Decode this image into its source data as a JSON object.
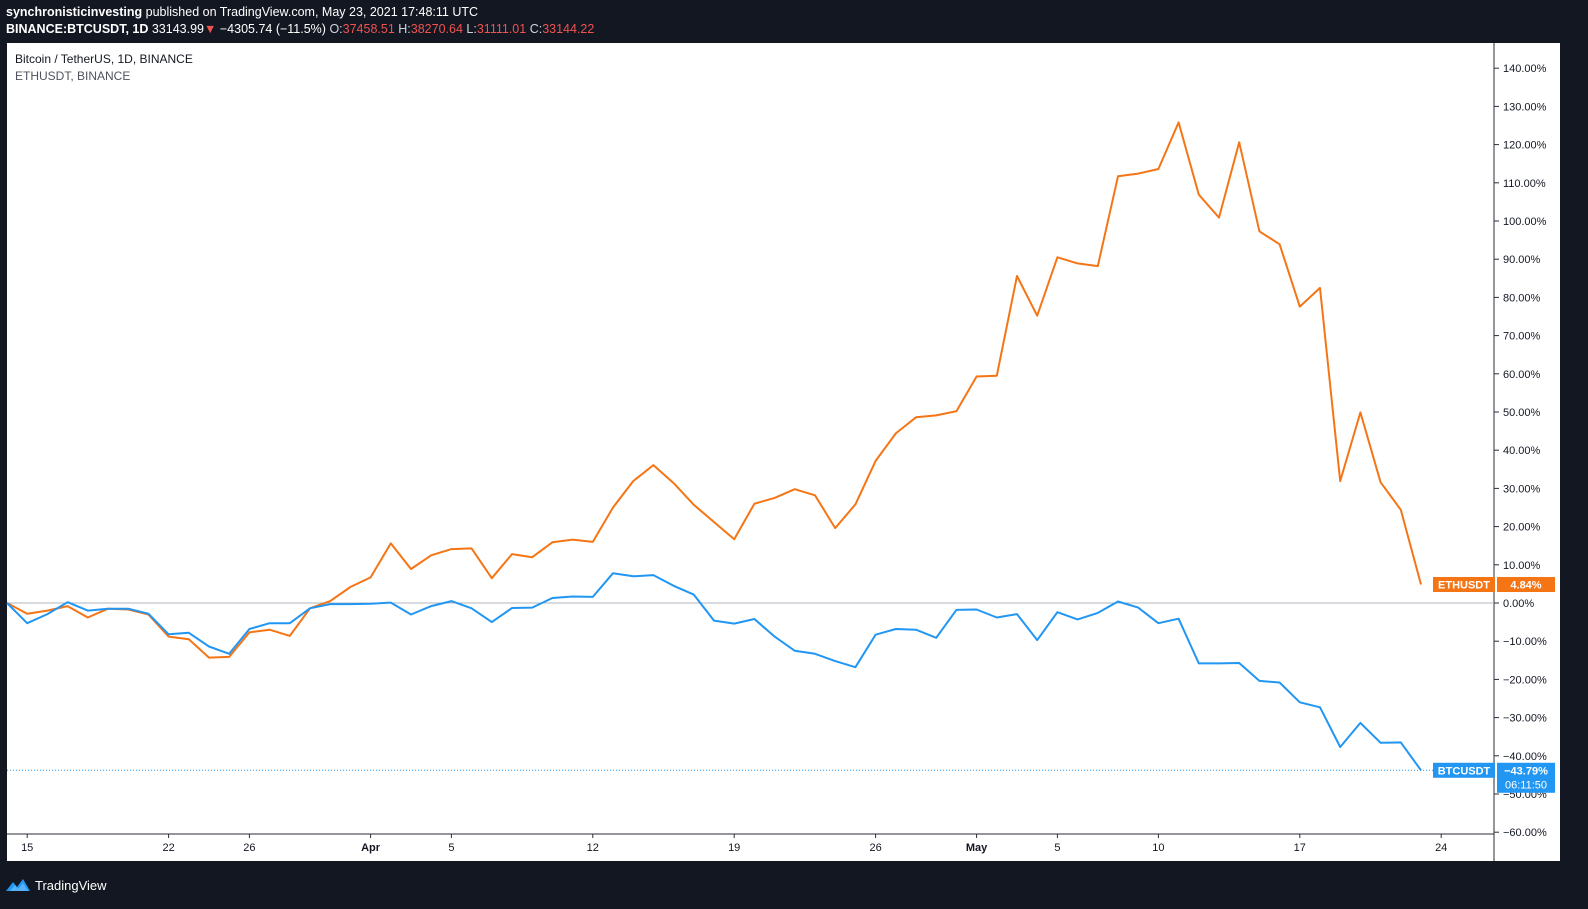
{
  "header": {
    "line1": {
      "author": "synchronisticinvesting",
      "rest": "published on TradingView.com, May 23, 2021 17:48:11 UTC"
    },
    "line2": {
      "symbol": "BINANCE:BTCUSDT, 1D",
      "price": "33143.99",
      "change_arrow": "▼",
      "change": "−4305.74 (−11.5%)",
      "o_label": "O:",
      "o_val": "37458.51",
      "h_label": "H:",
      "h_val": "38270.64",
      "l_label": "L:",
      "l_val": "31111.01",
      "c_label": "C:",
      "c_val": "33144.22"
    }
  },
  "footer": {
    "brand": "TradingView",
    "logo_icon": "tradingview-logo-icon"
  },
  "colors": {
    "background": "#131722",
    "pane": "#ffffff",
    "eth": "#f57515",
    "btc": "#2196f3",
    "text_dark": "#131722",
    "red": "#ef5350"
  },
  "chart_data": {
    "type": "line",
    "title": "Bitcoin / TetherUS, 1D, BINANCE",
    "subtitle": "ETHUSDT, BINANCE",
    "ylabel": "",
    "xlabel": "",
    "y_unit": "percent change",
    "ylim": [
      -60,
      145
    ],
    "y_ticks": [
      "140.00%",
      "130.00%",
      "120.00%",
      "110.00%",
      "100.00%",
      "90.00%",
      "80.00%",
      "70.00%",
      "60.00%",
      "50.00%",
      "40.00%",
      "30.00%",
      "20.00%",
      "10.00%",
      "0.00%",
      "−10.00%",
      "−20.00%",
      "−30.00%",
      "−40.00%",
      "−50.00%",
      "−60.00%"
    ],
    "y_tick_values": [
      140,
      130,
      120,
      110,
      100,
      90,
      80,
      70,
      60,
      50,
      40,
      30,
      20,
      10,
      0,
      -10,
      -20,
      -30,
      -40,
      -50,
      -60
    ],
    "x_start": "2021-03-14",
    "x_ticks": [
      {
        "date": "2021-03-15",
        "label": "15",
        "major": false
      },
      {
        "date": "2021-03-22",
        "label": "22",
        "major": false
      },
      {
        "date": "2021-03-26",
        "label": "26",
        "major": false
      },
      {
        "date": "2021-04-01",
        "label": "Apr",
        "major": true
      },
      {
        "date": "2021-04-05",
        "label": "5",
        "major": false
      },
      {
        "date": "2021-04-12",
        "label": "12",
        "major": false
      },
      {
        "date": "2021-04-19",
        "label": "19",
        "major": false
      },
      {
        "date": "2021-04-26",
        "label": "26",
        "major": false
      },
      {
        "date": "2021-05-01",
        "label": "May",
        "major": true
      },
      {
        "date": "2021-05-05",
        "label": "5",
        "major": false
      },
      {
        "date": "2021-05-10",
        "label": "10",
        "major": false
      },
      {
        "date": "2021-05-17",
        "label": "17",
        "major": false
      },
      {
        "date": "2021-05-24",
        "label": "24",
        "major": false
      }
    ],
    "baseline": 0,
    "grid": false,
    "series": [
      {
        "name": "ETHUSDT",
        "label_value": "4.84%",
        "color": "#f57515",
        "values": [
          0,
          -2.8,
          -2.0,
          -0.8,
          -3.8,
          -1.5,
          -1.7,
          -3.0,
          -8.8,
          -9.5,
          -14.3,
          -14.1,
          -7.7,
          -7.0,
          -8.6,
          -1.4,
          0.5,
          4.2,
          6.7,
          15.6,
          8.9,
          12.5,
          14.1,
          14.3,
          6.5,
          12.8,
          12.0,
          15.9,
          16.6,
          16.0,
          25.0,
          31.9,
          36.1,
          31.4,
          25.7,
          21.2,
          16.7,
          26.0,
          27.5,
          29.8,
          28.2,
          19.6,
          25.8,
          37.2,
          44.4,
          48.6,
          49.1,
          50.2,
          59.3,
          59.5,
          85.6,
          75.2,
          90.5,
          88.9,
          88.2,
          111.7,
          112.4,
          113.6,
          125.8,
          106.9,
          100.9,
          120.6,
          97.3,
          93.9,
          77.6,
          82.5,
          31.9,
          49.9,
          31.6,
          24.4,
          4.84
        ]
      },
      {
        "name": "BTCUSDT",
        "label_value": "−43.79%",
        "countdown": "06:11:50",
        "color": "#2196f3",
        "values": [
          0,
          -5.3,
          -2.9,
          0.2,
          -2.0,
          -1.5,
          -1.5,
          -2.8,
          -8.2,
          -7.8,
          -11.4,
          -13.3,
          -6.8,
          -5.3,
          -5.3,
          -1.4,
          -0.3,
          -0.3,
          -0.2,
          0.1,
          -3.0,
          -0.8,
          0.5,
          -1.4,
          -5.0,
          -1.3,
          -1.2,
          1.3,
          1.7,
          1.6,
          7.8,
          7.0,
          7.3,
          4.5,
          2.2,
          -4.6,
          -5.4,
          -4.2,
          -8.8,
          -12.5,
          -13.3,
          -15.2,
          -16.8,
          -8.3,
          -6.8,
          -7.0,
          -9.1,
          -1.8,
          -1.7,
          -3.8,
          -2.9,
          -9.7,
          -2.4,
          -4.3,
          -2.6,
          0.4,
          -1.2,
          -5.3,
          -4.1,
          -15.8,
          -15.8,
          -15.7,
          -20.4,
          -20.8,
          -26.0,
          -27.3,
          -37.7,
          -31.4,
          -36.6,
          -36.5,
          -43.79
        ]
      }
    ]
  }
}
